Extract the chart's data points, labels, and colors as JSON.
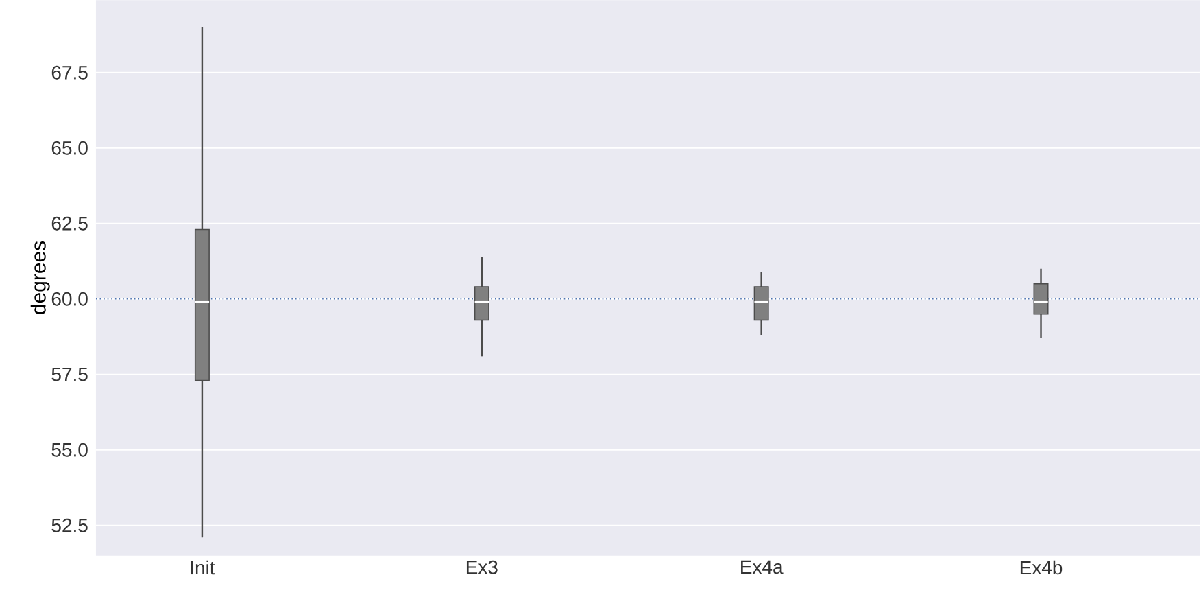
{
  "chart_data": {
    "type": "box",
    "ylabel": "degrees",
    "categories": [
      "Init",
      "Ex3",
      "Ex4a",
      "Ex4b"
    ],
    "boxes": [
      {
        "low": 52.1,
        "q1": 57.3,
        "median": 59.9,
        "q3": 62.3,
        "high": 69.0
      },
      {
        "low": 58.1,
        "q1": 59.3,
        "median": 59.9,
        "q3": 60.4,
        "high": 61.4
      },
      {
        "low": 58.8,
        "q1": 59.3,
        "median": 59.9,
        "q3": 60.4,
        "high": 60.9
      },
      {
        "low": 58.7,
        "q1": 59.5,
        "median": 59.9,
        "q3": 60.5,
        "high": 61.0
      }
    ],
    "color": "#808080",
    "ylim": [
      51.5,
      69.9
    ],
    "yticks": [
      {
        "value": 52.5,
        "label": "52.5"
      },
      {
        "value": 55.0,
        "label": "55.0"
      },
      {
        "value": 57.5,
        "label": "57.5"
      },
      {
        "value": 60.0,
        "label": "60.0"
      },
      {
        "value": 62.5,
        "label": "62.5"
      },
      {
        "value": 65.0,
        "label": "65.0"
      },
      {
        "value": 67.5,
        "label": "67.5"
      }
    ],
    "ref_lines": [
      {
        "axis": "y",
        "value": 60.0,
        "color": "#4c72b0",
        "line_style": "dotted"
      }
    ],
    "grid": "y"
  }
}
